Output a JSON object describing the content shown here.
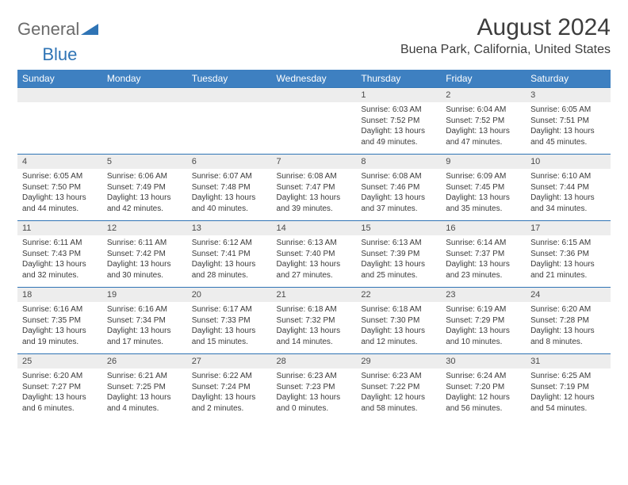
{
  "brand": {
    "part1": "General",
    "part2": "Blue"
  },
  "title": "August 2024",
  "location": "Buena Park, California, United States",
  "colors": {
    "header_bg": "#3e80c1",
    "header_text": "#ffffff",
    "daynum_bg": "#ededed",
    "cell_border": "#2f74b5",
    "body_text": "#3a3a3a",
    "brand_gray": "#6b6b6b",
    "brand_blue": "#2f74b5"
  },
  "day_names": [
    "Sunday",
    "Monday",
    "Tuesday",
    "Wednesday",
    "Thursday",
    "Friday",
    "Saturday"
  ],
  "weeks": [
    {
      "nums": [
        "",
        "",
        "",
        "",
        "1",
        "2",
        "3"
      ],
      "cells": [
        null,
        null,
        null,
        null,
        {
          "sunrise": "6:03 AM",
          "sunset": "7:52 PM",
          "daylight": "13 hours and 49 minutes."
        },
        {
          "sunrise": "6:04 AM",
          "sunset": "7:52 PM",
          "daylight": "13 hours and 47 minutes."
        },
        {
          "sunrise": "6:05 AM",
          "sunset": "7:51 PM",
          "daylight": "13 hours and 45 minutes."
        }
      ]
    },
    {
      "nums": [
        "4",
        "5",
        "6",
        "7",
        "8",
        "9",
        "10"
      ],
      "cells": [
        {
          "sunrise": "6:05 AM",
          "sunset": "7:50 PM",
          "daylight": "13 hours and 44 minutes."
        },
        {
          "sunrise": "6:06 AM",
          "sunset": "7:49 PM",
          "daylight": "13 hours and 42 minutes."
        },
        {
          "sunrise": "6:07 AM",
          "sunset": "7:48 PM",
          "daylight": "13 hours and 40 minutes."
        },
        {
          "sunrise": "6:08 AM",
          "sunset": "7:47 PM",
          "daylight": "13 hours and 39 minutes."
        },
        {
          "sunrise": "6:08 AM",
          "sunset": "7:46 PM",
          "daylight": "13 hours and 37 minutes."
        },
        {
          "sunrise": "6:09 AM",
          "sunset": "7:45 PM",
          "daylight": "13 hours and 35 minutes."
        },
        {
          "sunrise": "6:10 AM",
          "sunset": "7:44 PM",
          "daylight": "13 hours and 34 minutes."
        }
      ]
    },
    {
      "nums": [
        "11",
        "12",
        "13",
        "14",
        "15",
        "16",
        "17"
      ],
      "cells": [
        {
          "sunrise": "6:11 AM",
          "sunset": "7:43 PM",
          "daylight": "13 hours and 32 minutes."
        },
        {
          "sunrise": "6:11 AM",
          "sunset": "7:42 PM",
          "daylight": "13 hours and 30 minutes."
        },
        {
          "sunrise": "6:12 AM",
          "sunset": "7:41 PM",
          "daylight": "13 hours and 28 minutes."
        },
        {
          "sunrise": "6:13 AM",
          "sunset": "7:40 PM",
          "daylight": "13 hours and 27 minutes."
        },
        {
          "sunrise": "6:13 AM",
          "sunset": "7:39 PM",
          "daylight": "13 hours and 25 minutes."
        },
        {
          "sunrise": "6:14 AM",
          "sunset": "7:37 PM",
          "daylight": "13 hours and 23 minutes."
        },
        {
          "sunrise": "6:15 AM",
          "sunset": "7:36 PM",
          "daylight": "13 hours and 21 minutes."
        }
      ]
    },
    {
      "nums": [
        "18",
        "19",
        "20",
        "21",
        "22",
        "23",
        "24"
      ],
      "cells": [
        {
          "sunrise": "6:16 AM",
          "sunset": "7:35 PM",
          "daylight": "13 hours and 19 minutes."
        },
        {
          "sunrise": "6:16 AM",
          "sunset": "7:34 PM",
          "daylight": "13 hours and 17 minutes."
        },
        {
          "sunrise": "6:17 AM",
          "sunset": "7:33 PM",
          "daylight": "13 hours and 15 minutes."
        },
        {
          "sunrise": "6:18 AM",
          "sunset": "7:32 PM",
          "daylight": "13 hours and 14 minutes."
        },
        {
          "sunrise": "6:18 AM",
          "sunset": "7:30 PM",
          "daylight": "13 hours and 12 minutes."
        },
        {
          "sunrise": "6:19 AM",
          "sunset": "7:29 PM",
          "daylight": "13 hours and 10 minutes."
        },
        {
          "sunrise": "6:20 AM",
          "sunset": "7:28 PM",
          "daylight": "13 hours and 8 minutes."
        }
      ]
    },
    {
      "nums": [
        "25",
        "26",
        "27",
        "28",
        "29",
        "30",
        "31"
      ],
      "cells": [
        {
          "sunrise": "6:20 AM",
          "sunset": "7:27 PM",
          "daylight": "13 hours and 6 minutes."
        },
        {
          "sunrise": "6:21 AM",
          "sunset": "7:25 PM",
          "daylight": "13 hours and 4 minutes."
        },
        {
          "sunrise": "6:22 AM",
          "sunset": "7:24 PM",
          "daylight": "13 hours and 2 minutes."
        },
        {
          "sunrise": "6:23 AM",
          "sunset": "7:23 PM",
          "daylight": "13 hours and 0 minutes."
        },
        {
          "sunrise": "6:23 AM",
          "sunset": "7:22 PM",
          "daylight": "12 hours and 58 minutes."
        },
        {
          "sunrise": "6:24 AM",
          "sunset": "7:20 PM",
          "daylight": "12 hours and 56 minutes."
        },
        {
          "sunrise": "6:25 AM",
          "sunset": "7:19 PM",
          "daylight": "12 hours and 54 minutes."
        }
      ]
    }
  ],
  "labels": {
    "sunrise": "Sunrise:",
    "sunset": "Sunset:",
    "daylight": "Daylight:"
  }
}
